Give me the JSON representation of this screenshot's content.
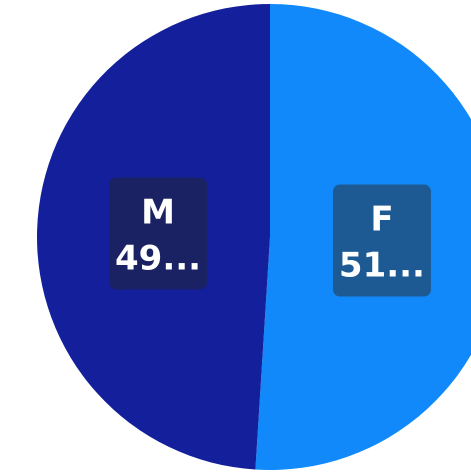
{
  "chart_data": {
    "type": "pie",
    "title": "",
    "categories": [
      "F",
      "M"
    ],
    "values": [
      51,
      49
    ],
    "value_labels": [
      "51...",
      "49..."
    ],
    "colors": [
      "#1289fb",
      "#131f9b"
    ],
    "label_box_colors": [
      "#1d5a93",
      "#1b2263"
    ],
    "start_angle_deg": 0,
    "direction": "clockwise",
    "legend": "none"
  }
}
